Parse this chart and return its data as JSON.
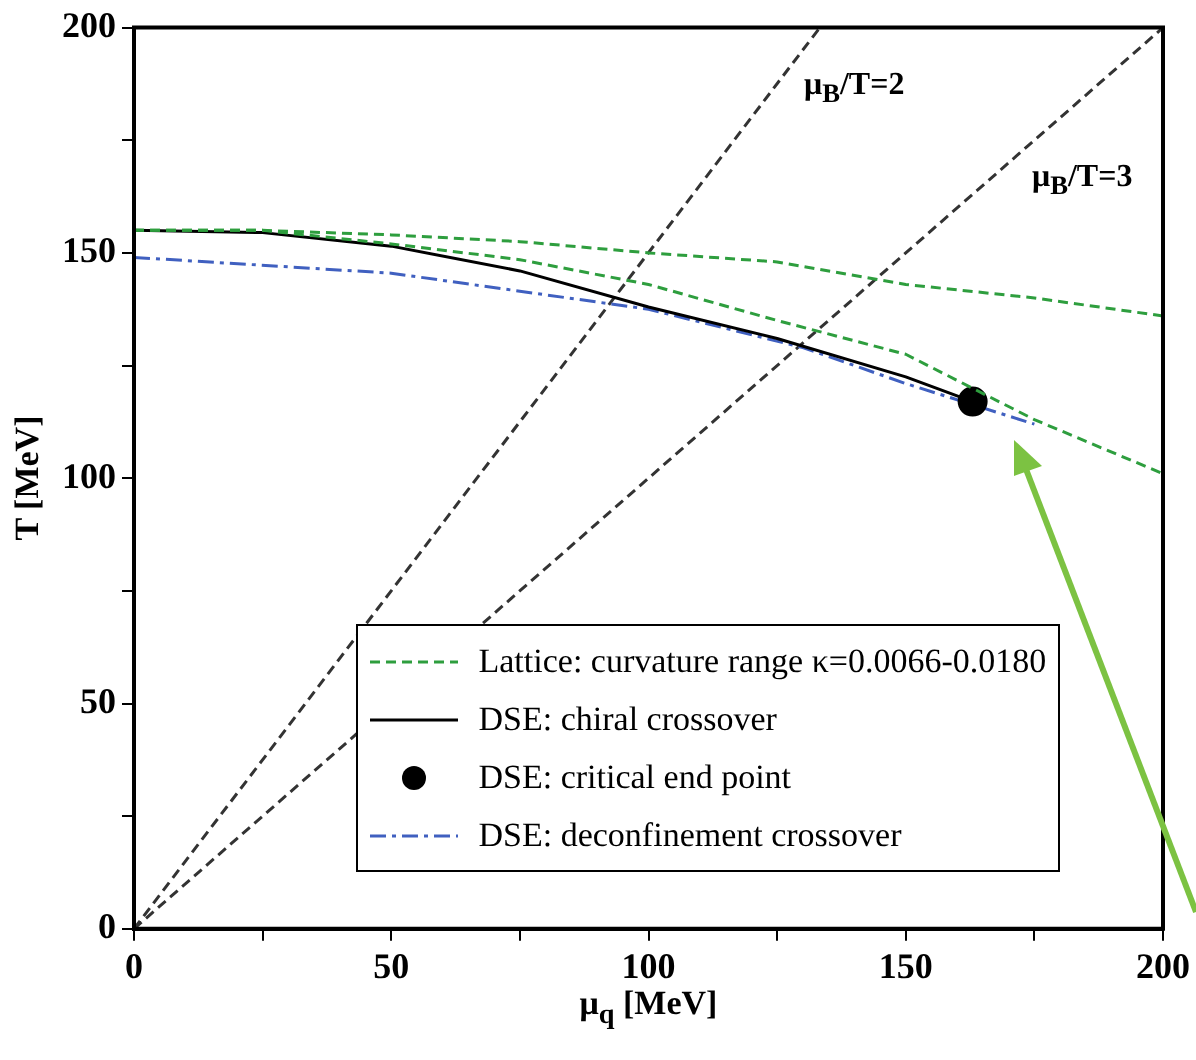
{
  "chart_data": {
    "type": "line",
    "xlabel": "μ$_{q}$ [MeV]",
    "ylabel": "T [MeV]",
    "xlim": [
      0,
      200
    ],
    "ylim": [
      0,
      200
    ],
    "xticks": [
      0,
      {
        "value": 25,
        "label": null
      },
      50,
      {
        "value": 75,
        "label": null
      },
      100,
      {
        "value": 125,
        "label": null
      },
      150,
      {
        "value": 175,
        "label": null
      },
      200
    ],
    "yticks": [
      0,
      {
        "value": 25,
        "label": null
      },
      50,
      {
        "value": 75,
        "label": null
      },
      100,
      {
        "value": 125,
        "label": null
      },
      150,
      {
        "value": 175,
        "label": null
      },
      200
    ],
    "grid": false,
    "legend": "bottom",
    "marker": "none",
    "series": [
      {
        "name": "Lattice: curvature range κ=0.0066-0.0180",
        "line_style": "dashed",
        "color": "#2e9e3e",
        "x": [
          0,
          25,
          50,
          75,
          100,
          125,
          150,
          175,
          200
        ],
        "values": [
          155,
          155,
          154,
          152.5,
          150,
          148,
          143,
          140,
          136
        ]
      },
      {
        "line_style": "dashed",
        "color": "#2e9e3e",
        "x": [
          0,
          25,
          50,
          75,
          100,
          125,
          150,
          175,
          200
        ],
        "values": [
          155,
          155,
          152,
          148.5,
          143,
          135,
          127.5,
          113,
          101
        ]
      },
      {
        "name": "DSE: chiral crossover",
        "line_style": "solid",
        "color": "#000000",
        "x": [
          0,
          25,
          50,
          75,
          100,
          125,
          150,
          163
        ],
        "values": [
          155,
          154.5,
          151.5,
          146,
          138,
          131,
          122.5,
          117
        ]
      },
      {
        "name": "DSE: critical end point",
        "type": "scatter",
        "marker": "circle",
        "color": "#000000",
        "x": [
          163
        ],
        "values": [
          117
        ]
      },
      {
        "name": "DSE: deconfinement crossover",
        "line_style": "dashdot",
        "color": "#4060c0",
        "x": [
          0,
          50,
          100,
          130,
          150,
          175
        ],
        "values": [
          149,
          145.5,
          137.5,
          129,
          121,
          112
        ]
      },
      {
        "line_style": "dashed",
        "color": "#333333",
        "x": [
          0,
          133.3
        ],
        "values": [
          0,
          200
        ]
      },
      {
        "line_style": "dashed",
        "color": "#333333",
        "x": [
          0,
          200
        ],
        "values": [
          0,
          200
        ]
      }
    ],
    "annotations": [
      "μ$_{B}$/T=2",
      "μ$_{B}$/T=3"
    ]
  }
}
